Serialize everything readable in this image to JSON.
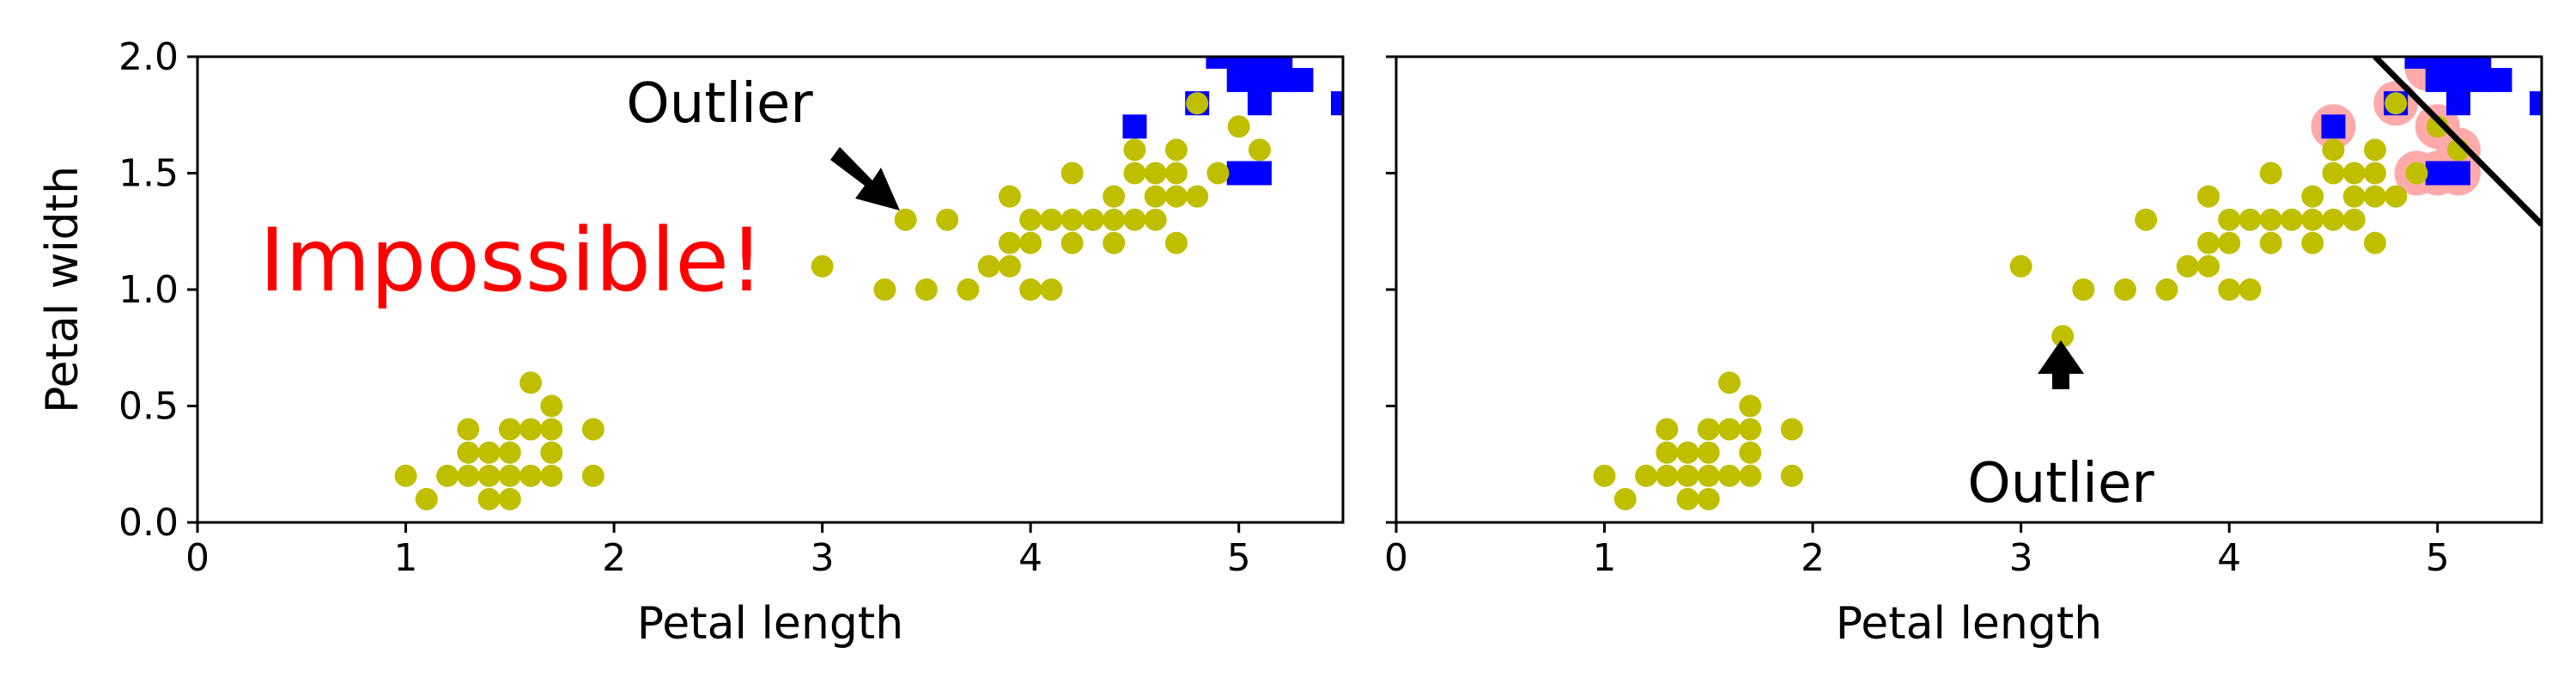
{
  "chart_data": [
    {
      "type": "scatter",
      "title": "",
      "xlabel": "Petal length",
      "ylabel": "Petal width",
      "xlim": [
        0,
        5.5
      ],
      "ylim": [
        0,
        2.0
      ],
      "xticks": [
        "0",
        "1",
        "2",
        "3",
        "4",
        "5"
      ],
      "yticks": [
        "0.0",
        "0.5",
        "1.0",
        "1.5",
        "2.0"
      ],
      "series": [
        {
          "marker": "square",
          "color": "#0000ff",
          "points": [
            [
              4.5,
              1.7
            ],
            [
              4.8,
              1.8
            ],
            [
              4.9,
              2.0
            ],
            [
              5.0,
              1.5
            ],
            [
              5.0,
              1.9
            ],
            [
              5.0,
              2.0
            ],
            [
              5.1,
              1.5
            ],
            [
              5.1,
              1.8
            ],
            [
              5.1,
              1.9
            ],
            [
              5.1,
              2.0
            ],
            [
              5.2,
              1.9
            ],
            [
              5.2,
              2.0
            ],
            [
              5.3,
              1.9
            ],
            [
              5.5,
              1.8
            ]
          ]
        },
        {
          "marker": "circle",
          "color": "#bfbf00",
          "points": [
            [
              1.0,
              0.2
            ],
            [
              1.1,
              0.1
            ],
            [
              1.2,
              0.2
            ],
            [
              1.3,
              0.2
            ],
            [
              1.3,
              0.3
            ],
            [
              1.3,
              0.4
            ],
            [
              1.4,
              0.1
            ],
            [
              1.4,
              0.2
            ],
            [
              1.4,
              0.3
            ],
            [
              1.5,
              0.1
            ],
            [
              1.5,
              0.2
            ],
            [
              1.5,
              0.3
            ],
            [
              1.5,
              0.4
            ],
            [
              1.6,
              0.2
            ],
            [
              1.6,
              0.4
            ],
            [
              1.6,
              0.6
            ],
            [
              1.7,
              0.2
            ],
            [
              1.7,
              0.3
            ],
            [
              1.7,
              0.4
            ],
            [
              1.7,
              0.5
            ],
            [
              1.9,
              0.2
            ],
            [
              1.9,
              0.4
            ],
            [
              3.0,
              1.1
            ],
            [
              3.3,
              1.0
            ],
            [
              3.4,
              1.3
            ],
            [
              3.5,
              1.0
            ],
            [
              3.6,
              1.3
            ],
            [
              3.7,
              1.0
            ],
            [
              3.8,
              1.1
            ],
            [
              3.9,
              1.1
            ],
            [
              3.9,
              1.2
            ],
            [
              3.9,
              1.4
            ],
            [
              4.0,
              1.0
            ],
            [
              4.0,
              1.2
            ],
            [
              4.0,
              1.3
            ],
            [
              4.1,
              1.0
            ],
            [
              4.1,
              1.3
            ],
            [
              4.2,
              1.2
            ],
            [
              4.2,
              1.3
            ],
            [
              4.2,
              1.5
            ],
            [
              4.3,
              1.3
            ],
            [
              4.4,
              1.2
            ],
            [
              4.4,
              1.3
            ],
            [
              4.4,
              1.4
            ],
            [
              4.5,
              1.3
            ],
            [
              4.5,
              1.5
            ],
            [
              4.5,
              1.6
            ],
            [
              4.6,
              1.3
            ],
            [
              4.6,
              1.4
            ],
            [
              4.6,
              1.5
            ],
            [
              4.7,
              1.2
            ],
            [
              4.7,
              1.4
            ],
            [
              4.7,
              1.5
            ],
            [
              4.7,
              1.6
            ],
            [
              4.8,
              1.4
            ],
            [
              4.8,
              1.8
            ],
            [
              4.9,
              1.5
            ],
            [
              5.0,
              1.7
            ],
            [
              5.1,
              1.6
            ]
          ]
        }
      ],
      "annotations": [
        {
          "text": "Outlier",
          "arrow_to": [
            3.4,
            1.3
          ],
          "color": "#000000"
        },
        {
          "text": "Impossible!",
          "color": "#ff0000"
        }
      ]
    },
    {
      "type": "scatter",
      "title": "",
      "xlabel": "Petal length",
      "ylabel": "",
      "xlim": [
        0,
        5.5
      ],
      "ylim": [
        0,
        2.0
      ],
      "xticks": [
        "0",
        "1",
        "2",
        "3",
        "4",
        "5"
      ],
      "series": [
        {
          "marker": "square",
          "color": "#0000ff",
          "points": [
            [
              4.5,
              1.7
            ],
            [
              4.8,
              1.8
            ],
            [
              4.9,
              2.0
            ],
            [
              5.0,
              1.5
            ],
            [
              5.0,
              1.9
            ],
            [
              5.0,
              2.0
            ],
            [
              5.1,
              1.5
            ],
            [
              5.1,
              1.8
            ],
            [
              5.1,
              1.9
            ],
            [
              5.1,
              2.0
            ],
            [
              5.2,
              1.9
            ],
            [
              5.2,
              2.0
            ],
            [
              5.3,
              1.9
            ],
            [
              5.5,
              1.8
            ]
          ]
        },
        {
          "marker": "circle",
          "color": "#bfbf00",
          "points": [
            [
              1.0,
              0.2
            ],
            [
              1.1,
              0.1
            ],
            [
              1.2,
              0.2
            ],
            [
              1.3,
              0.2
            ],
            [
              1.3,
              0.3
            ],
            [
              1.3,
              0.4
            ],
            [
              1.4,
              0.1
            ],
            [
              1.4,
              0.2
            ],
            [
              1.4,
              0.3
            ],
            [
              1.5,
              0.1
            ],
            [
              1.5,
              0.2
            ],
            [
              1.5,
              0.3
            ],
            [
              1.5,
              0.4
            ],
            [
              1.6,
              0.2
            ],
            [
              1.6,
              0.4
            ],
            [
              1.6,
              0.6
            ],
            [
              1.7,
              0.2
            ],
            [
              1.7,
              0.3
            ],
            [
              1.7,
              0.4
            ],
            [
              1.7,
              0.5
            ],
            [
              1.9,
              0.2
            ],
            [
              1.9,
              0.4
            ],
            [
              3.0,
              1.1
            ],
            [
              3.2,
              0.8
            ],
            [
              3.3,
              1.0
            ],
            [
              3.5,
              1.0
            ],
            [
              3.6,
              1.3
            ],
            [
              3.7,
              1.0
            ],
            [
              3.8,
              1.1
            ],
            [
              3.9,
              1.1
            ],
            [
              3.9,
              1.2
            ],
            [
              3.9,
              1.4
            ],
            [
              4.0,
              1.0
            ],
            [
              4.0,
              1.2
            ],
            [
              4.0,
              1.3
            ],
            [
              4.1,
              1.0
            ],
            [
              4.1,
              1.3
            ],
            [
              4.2,
              1.2
            ],
            [
              4.2,
              1.3
            ],
            [
              4.2,
              1.5
            ],
            [
              4.3,
              1.3
            ],
            [
              4.4,
              1.2
            ],
            [
              4.4,
              1.3
            ],
            [
              4.4,
              1.4
            ],
            [
              4.5,
              1.3
            ],
            [
              4.5,
              1.5
            ],
            [
              4.5,
              1.6
            ],
            [
              4.6,
              1.3
            ],
            [
              4.6,
              1.4
            ],
            [
              4.6,
              1.5
            ],
            [
              4.7,
              1.2
            ],
            [
              4.7,
              1.4
            ],
            [
              4.7,
              1.5
            ],
            [
              4.7,
              1.6
            ],
            [
              4.8,
              1.4
            ],
            [
              4.8,
              1.8
            ],
            [
              4.9,
              1.5
            ],
            [
              5.0,
              1.7
            ],
            [
              5.1,
              1.6
            ]
          ]
        }
      ],
      "support_vectors": {
        "color": "#ffaaaa",
        "points": [
          [
            4.5,
            1.7
          ],
          [
            4.8,
            1.8
          ],
          [
            4.9,
            1.5
          ],
          [
            5.0,
            1.5
          ],
          [
            5.0,
            1.7
          ],
          [
            5.1,
            1.5
          ],
          [
            5.1,
            1.6
          ],
          [
            4.95,
            1.95
          ]
        ]
      },
      "decision_boundary": {
        "color": "#000000",
        "points": [
          [
            4.7,
            2.0
          ],
          [
            5.5,
            1.28
          ]
        ]
      },
      "annotations": [
        {
          "text": "Outlier",
          "arrow_to": [
            3.2,
            0.8
          ],
          "color": "#000000"
        }
      ]
    }
  ]
}
